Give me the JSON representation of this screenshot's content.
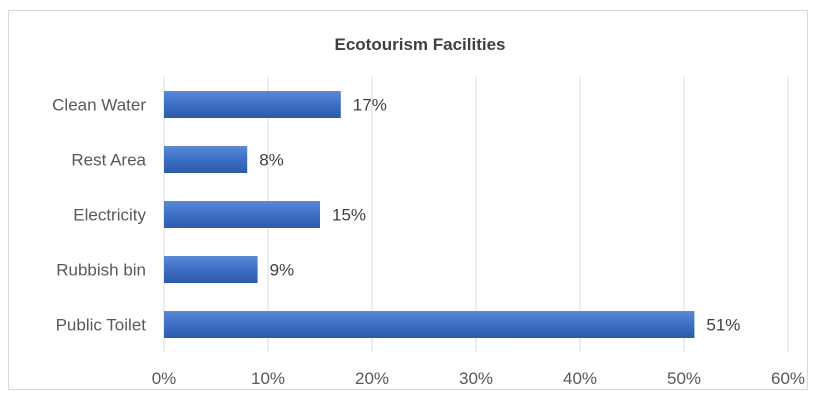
{
  "chart_data": {
    "type": "bar",
    "orientation": "horizontal",
    "title": "Ecotourism Facilities",
    "categories": [
      "Clean Water",
      "Rest Area",
      "Electricity",
      "Rubbish bin",
      "Public Toilet"
    ],
    "values": [
      17,
      8,
      15,
      9,
      51
    ],
    "data_labels": [
      "17%",
      "8%",
      "15%",
      "9%",
      "51%"
    ],
    "xlim": [
      0,
      60
    ],
    "x_ticks": [
      "0%",
      "10%",
      "20%",
      "30%",
      "40%",
      "50%",
      "60%"
    ],
    "grid": true,
    "legend": "none",
    "bar_color": "#3c6fc4"
  }
}
